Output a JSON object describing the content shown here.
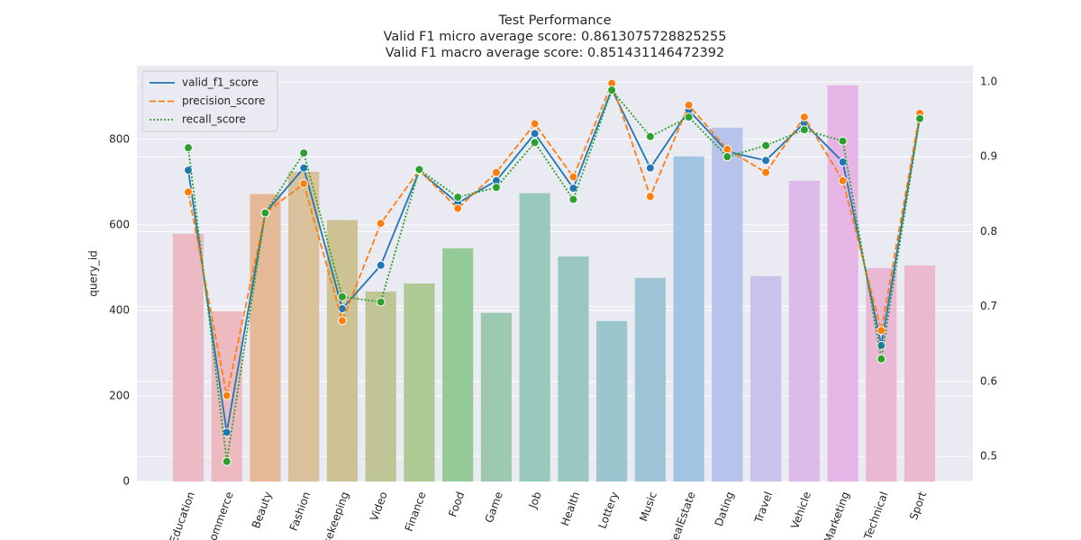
{
  "chart_data": {
    "type": "bar-line",
    "title": [
      "Test Performance",
      "Valid F1 micro average score: 0.8613075728825255",
      "Valid F1 macro average score: 0.851431146472392"
    ],
    "ylabel": "query_id",
    "categories": [
      "Education",
      "Ecommerce",
      "Beauty",
      "Fashion",
      "Housekeeping",
      "Video",
      "Finance",
      "Food",
      "Game",
      "Job",
      "Health",
      "Lottery",
      "Music",
      "RealEstate",
      "Dating",
      "Travel",
      "Vehicle",
      "Marketing",
      "Technical",
      "Sport"
    ],
    "values": [
      579,
      398,
      672,
      724,
      611,
      444,
      463,
      545,
      394,
      674,
      526,
      375,
      476,
      760,
      827,
      480,
      703,
      926,
      499,
      505
    ],
    "bar_colors": [
      "#ecbac5",
      "#edbabf",
      "#e5b997",
      "#d8c19b",
      "#cdc294",
      "#c0c596",
      "#afc994",
      "#95cb97",
      "#9dc9b1",
      "#99c9bc",
      "#9ac7c4",
      "#9bc6cd",
      "#9ec4d6",
      "#a1c4e3",
      "#b7c3ea",
      "#cbc3ec",
      "#dcbbea",
      "#e6b5e6",
      "#e8b8d5",
      "#ebb9cd"
    ],
    "series": [
      {
        "name": "valid_f1_score",
        "color": "#1f77b4",
        "dash": "solid",
        "axis": "y2",
        "values": [
          0.882,
          0.532,
          0.825,
          0.885,
          0.697,
          0.755,
          0.881,
          0.838,
          0.868,
          0.931,
          0.858,
          0.99,
          0.885,
          0.962,
          0.907,
          0.895,
          0.945,
          0.893,
          0.648,
          0.953
        ]
      },
      {
        "name": "precision_score",
        "color": "#ff7f0e",
        "dash": "dashed",
        "axis": "y2",
        "values": [
          0.853,
          0.581,
          0.825,
          0.864,
          0.681,
          0.811,
          0.882,
          0.831,
          0.879,
          0.944,
          0.873,
          0.998,
          0.847,
          0.969,
          0.91,
          0.879,
          0.953,
          0.868,
          0.668,
          0.958
        ]
      },
      {
        "name": "recall_score",
        "color": "#2ca02c",
        "dash": "dotted",
        "axis": "y2",
        "values": [
          0.912,
          0.493,
          0.825,
          0.905,
          0.713,
          0.706,
          0.883,
          0.846,
          0.859,
          0.919,
          0.843,
          0.989,
          0.927,
          0.953,
          0.9,
          0.915,
          0.936,
          0.921,
          0.63,
          0.951
        ]
      }
    ],
    "ylim": [
      0,
      972
    ],
    "yticks": [
      0,
      200,
      400,
      600,
      800
    ],
    "y2lim": [
      0.4663,
      1.0216
    ],
    "y2ticks": [
      0.5,
      0.6,
      0.7,
      0.8,
      0.9,
      {
        "value": 1,
        "label": "1.0"
      }
    ],
    "grid": true,
    "legend": "upper left"
  }
}
